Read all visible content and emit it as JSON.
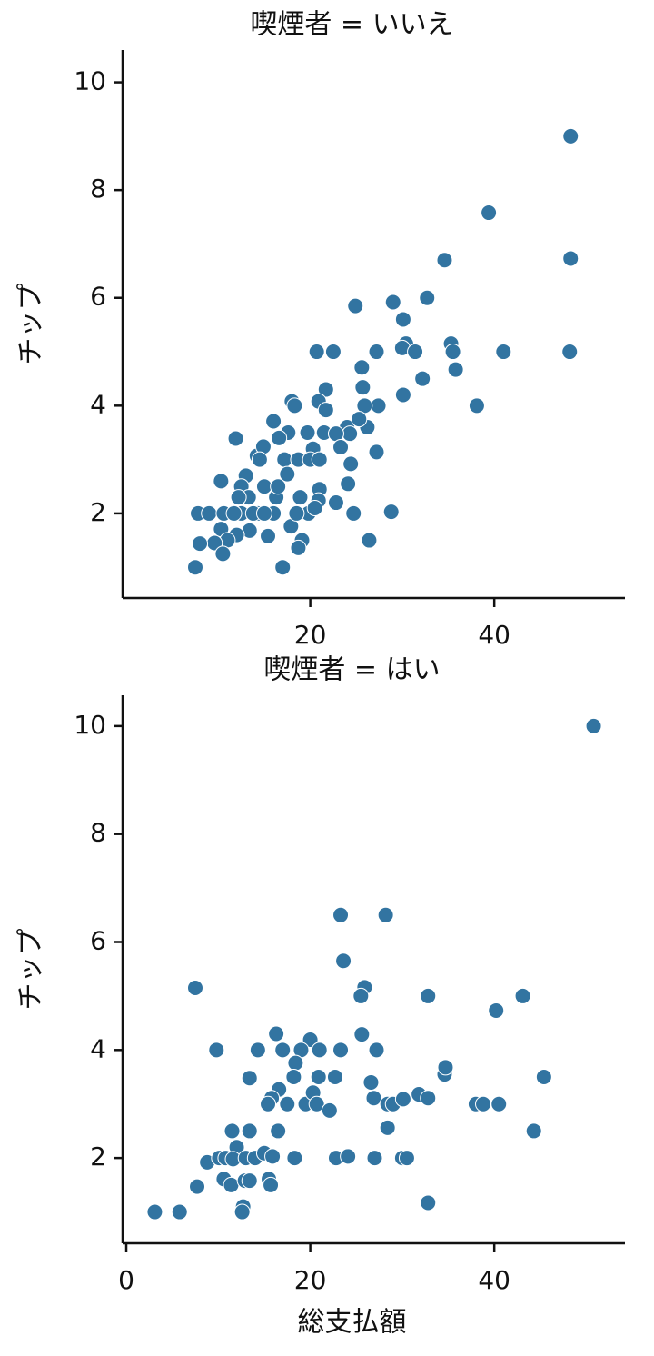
{
  "chart_data": [
    {
      "type": "scatter",
      "title": "喫煙者 = いいえ",
      "ylabel": "チップ",
      "color": "#3274a1",
      "x": [
        48.3,
        39.4,
        34.6,
        48.3,
        32.7,
        29.0,
        24.9,
        30.1,
        30.4,
        30.0,
        31.4,
        35.3,
        35.5,
        35.8,
        41.0,
        48.2,
        20.7,
        22.5,
        27.2,
        25.6,
        32.2,
        30.1,
        38.1,
        25.7,
        21.7,
        20.9,
        18.0,
        18.3,
        21.7,
        27.4,
        25.9,
        26.2,
        24.0,
        25.3,
        24.3,
        16.0,
        17.6,
        19.7,
        21.5,
        22.8,
        23.3,
        20.3,
        16.6,
        11.9,
        14.2,
        14.9,
        17.2,
        18.7,
        20.0,
        21.0,
        24.4,
        27.2,
        24.1,
        21.0,
        20.9,
        22.8,
        18.9,
        16.3,
        17.5,
        15.0,
        13.0,
        12.5,
        10.3,
        14.3,
        16.0,
        19.8,
        24.7,
        28.8,
        26.4,
        19.1,
        18.7,
        17.0,
        17.9,
        15.4,
        13.4,
        12.0,
        10.3,
        11.0,
        9.6,
        10.5,
        8.0,
        7.5,
        7.8,
        9.0,
        10.6,
        12.5,
        13.8,
        15.0,
        11.7,
        20.5,
        13.3,
        12.2,
        14.5,
        16.5,
        18.5
      ],
      "values": [
        9.0,
        7.58,
        6.7,
        6.73,
        6.0,
        5.92,
        5.85,
        5.6,
        5.15,
        5.07,
        5.0,
        5.15,
        5.0,
        4.67,
        5.0,
        5.0,
        5.0,
        5.0,
        5.0,
        4.71,
        4.5,
        4.2,
        4.0,
        4.34,
        4.3,
        4.08,
        4.08,
        4.0,
        3.92,
        4.0,
        4.0,
        3.6,
        3.6,
        3.75,
        3.48,
        3.71,
        3.5,
        3.5,
        3.5,
        3.48,
        3.23,
        3.2,
        3.4,
        3.39,
        3.07,
        3.24,
        3.0,
        3.0,
        3.0,
        3.0,
        2.92,
        3.14,
        2.55,
        2.45,
        2.24,
        2.2,
        2.3,
        2.3,
        2.73,
        2.5,
        2.7,
        2.5,
        2.6,
        2.0,
        2.0,
        2.0,
        2.0,
        2.03,
        1.5,
        1.5,
        1.36,
        1.0,
        1.76,
        1.58,
        1.68,
        1.6,
        1.71,
        1.5,
        1.45,
        1.25,
        1.44,
        1.0,
        2.0,
        2.0,
        2.0,
        2.0,
        2.0,
        2.0,
        2.0,
        2.1,
        2.3,
        2.3,
        3.0,
        2.5,
        2.0
      ],
      "xlim": [
        -0.2,
        54.2
      ],
      "ylim": [
        0.43,
        10.6
      ],
      "xticks": [
        20,
        40
      ],
      "yticks": [
        2,
        4,
        6,
        8,
        10
      ]
    },
    {
      "type": "scatter",
      "title": "喫煙者 = はい",
      "xlabel": "総支払額",
      "ylabel": "チップ",
      "color": "#3274a1",
      "x": [
        50.8,
        23.3,
        28.2,
        23.6,
        7.5,
        25.9,
        25.5,
        32.8,
        43.1,
        40.2,
        16.3,
        20.0,
        9.8,
        14.3,
        17.0,
        19.0,
        21.0,
        23.3,
        27.2,
        18.4,
        25.6,
        13.4,
        18.2,
        20.9,
        22.7,
        26.6,
        34.6,
        34.7,
        45.4,
        16.6,
        15.8,
        15.4,
        17.5,
        19.5,
        20.3,
        20.7,
        22.1,
        26.9,
        28.4,
        29.0,
        30.1,
        31.8,
        32.8,
        38.0,
        38.8,
        40.5,
        44.3,
        28.4,
        16.5,
        11.5,
        13.4,
        12.0,
        8.8,
        10.1,
        10.8,
        11.6,
        13.0,
        14.0,
        15.0,
        15.9,
        18.3,
        22.8,
        24.1,
        27.0,
        30.0,
        30.5,
        10.6,
        11.4,
        12.9,
        13.4,
        15.5,
        15.7,
        7.7,
        12.7,
        12.6,
        3.1,
        5.8,
        32.8
      ],
      "values": [
        10.0,
        6.5,
        6.5,
        5.65,
        5.15,
        5.16,
        5.0,
        5.0,
        5.0,
        4.73,
        4.3,
        4.19,
        4.0,
        4.0,
        4.0,
        4.0,
        4.0,
        4.0,
        4.0,
        3.76,
        4.29,
        3.48,
        3.5,
        3.5,
        3.5,
        3.4,
        3.55,
        3.68,
        3.5,
        3.27,
        3.11,
        3.0,
        3.0,
        3.0,
        3.21,
        3.0,
        2.88,
        3.11,
        3.0,
        3.0,
        3.09,
        3.18,
        3.11,
        3.0,
        3.0,
        3.0,
        2.5,
        2.56,
        2.5,
        2.5,
        2.5,
        2.2,
        1.92,
        2.0,
        2.0,
        1.98,
        2.0,
        2.0,
        2.09,
        2.03,
        2.0,
        2.0,
        2.03,
        2.0,
        2.0,
        2.0,
        1.61,
        1.5,
        1.58,
        1.58,
        1.61,
        1.5,
        1.47,
        1.1,
        1.0,
        1.0,
        1.0,
        1.17
      ],
      "xlim": [
        -0.2,
        54.2
      ],
      "ylim": [
        0.42,
        10.57
      ],
      "xticks": [
        0,
        20,
        40
      ],
      "yticks": [
        2,
        4,
        6,
        8,
        10
      ]
    }
  ]
}
